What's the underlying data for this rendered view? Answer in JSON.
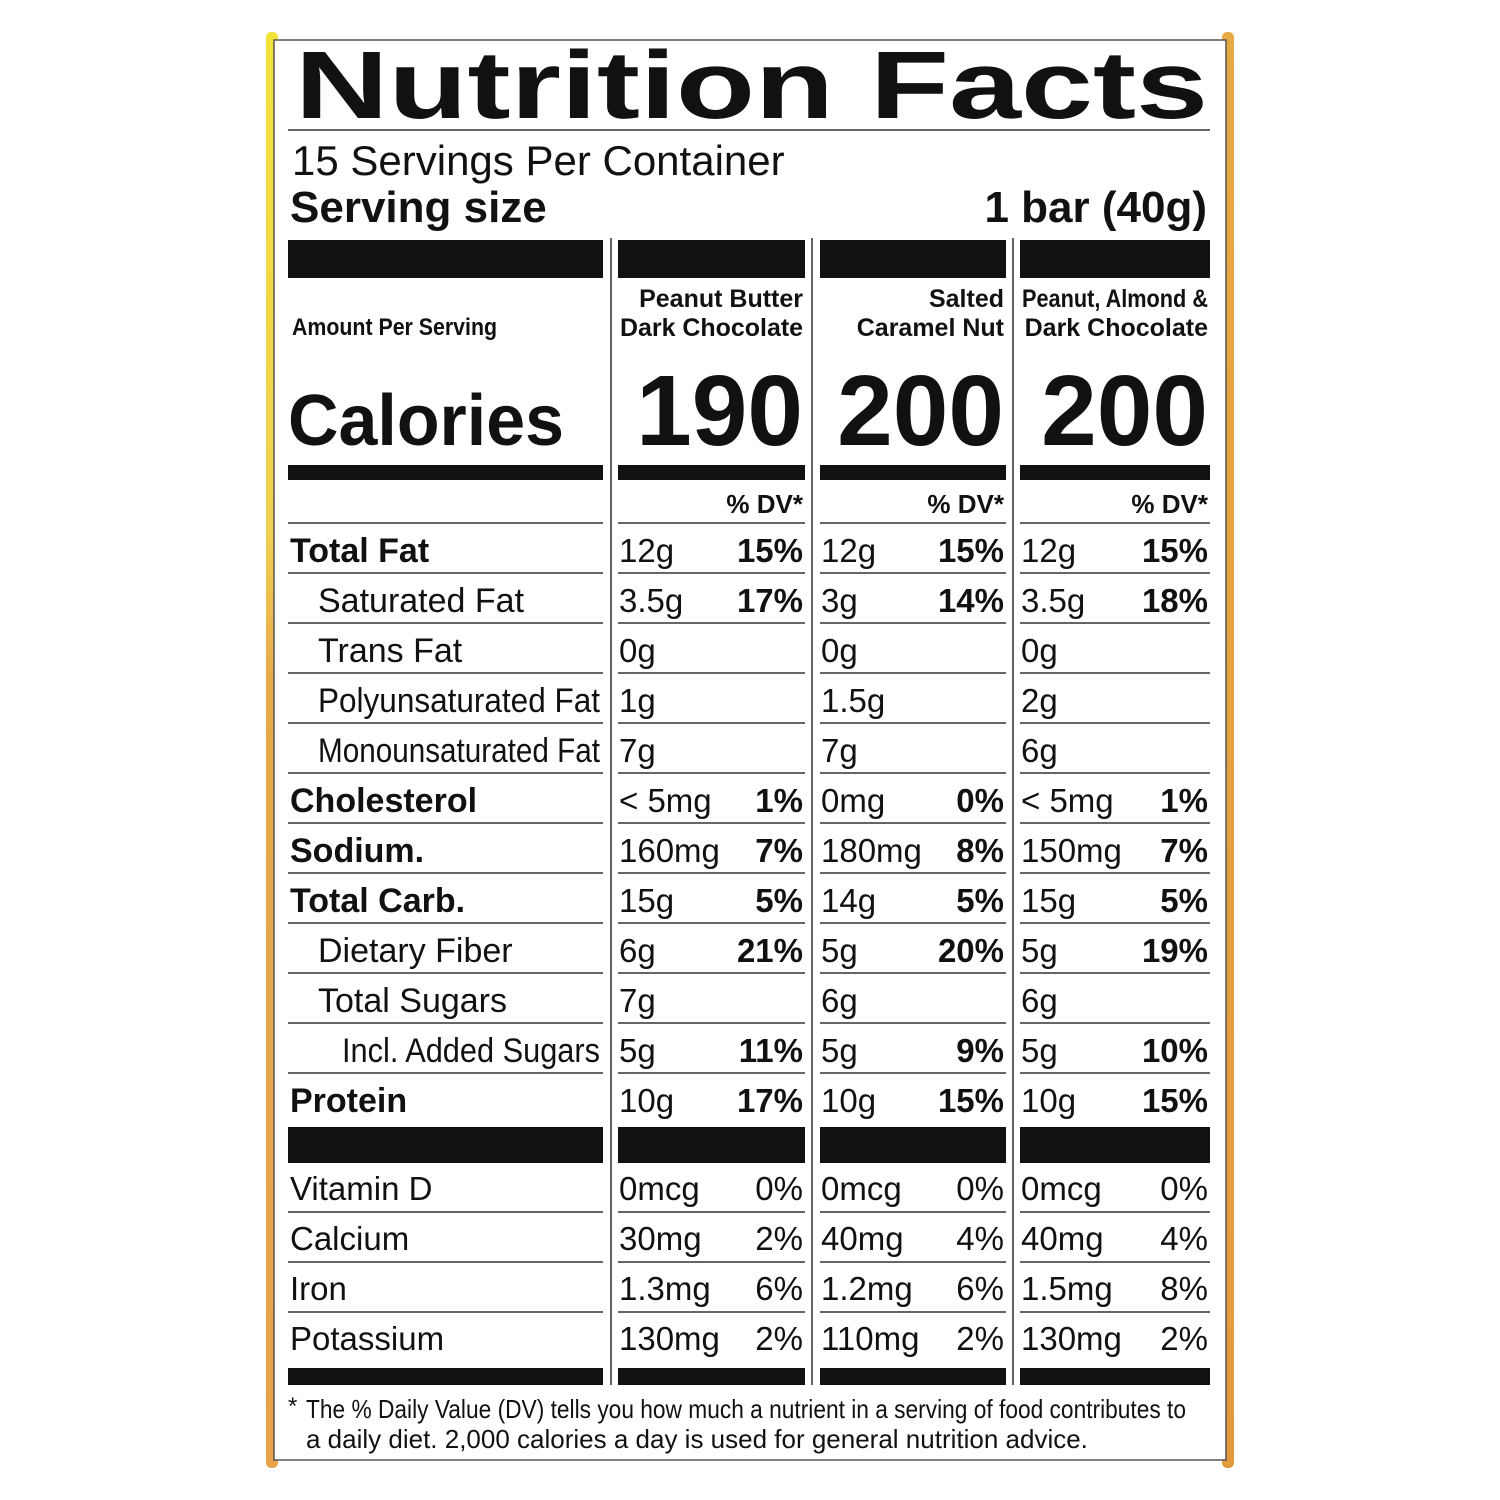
{
  "title": "Nutrition Facts",
  "servings_per_container": "15 Servings Per Container",
  "serving_size": {
    "label": "Serving size",
    "value": "1 bar (40g)"
  },
  "amount_per_serving": "Amount Per Serving",
  "calories_label": "Calories",
  "dv_header": "% DV*",
  "products": [
    {
      "name_lines": [
        "Peanut Butter",
        "Dark Chocolate"
      ],
      "calories": 190
    },
    {
      "name_lines": [
        "Salted",
        "Caramel Nut"
      ],
      "calories": 200
    },
    {
      "name_lines": [
        "Peanut, Almond &",
        "Dark Chocolate"
      ],
      "calories": 200
    }
  ],
  "nutrients": [
    {
      "name": "Total Fat",
      "bold": true,
      "indent": 0,
      "values": [
        [
          "12g",
          "15%"
        ],
        [
          "12g",
          "15%"
        ],
        [
          "12g",
          "15%"
        ]
      ]
    },
    {
      "name": "Saturated Fat",
      "bold": false,
      "indent": 1,
      "values": [
        [
          "3.5g",
          "17%"
        ],
        [
          "3g",
          "14%"
        ],
        [
          "3.5g",
          "18%"
        ]
      ]
    },
    {
      "name": "Trans Fat",
      "bold": false,
      "indent": 1,
      "values": [
        [
          "0g",
          null
        ],
        [
          "0g",
          null
        ],
        [
          "0g",
          null
        ]
      ]
    },
    {
      "name": "Polyunsaturated Fat",
      "bold": false,
      "indent": 1,
      "values": [
        [
          "1g",
          null
        ],
        [
          "1.5g",
          null
        ],
        [
          "2g",
          null
        ]
      ]
    },
    {
      "name": "Monounsaturated Fat",
      "bold": false,
      "indent": 1,
      "values": [
        [
          "7g",
          null
        ],
        [
          "7g",
          null
        ],
        [
          "6g",
          null
        ]
      ]
    },
    {
      "name": "Cholesterol",
      "bold": true,
      "indent": 0,
      "values": [
        [
          "< 5mg",
          "1%"
        ],
        [
          "0mg",
          "0%"
        ],
        [
          "< 5mg",
          "1%"
        ]
      ]
    },
    {
      "name": "Sodium.",
      "bold": true,
      "indent": 0,
      "values": [
        [
          "160mg",
          "7%"
        ],
        [
          "180mg",
          "8%"
        ],
        [
          "150mg",
          "7%"
        ]
      ]
    },
    {
      "name": "Total Carb.",
      "bold": true,
      "indent": 0,
      "values": [
        [
          "15g",
          "5%"
        ],
        [
          "14g",
          "5%"
        ],
        [
          "15g",
          "5%"
        ]
      ]
    },
    {
      "name": "Dietary Fiber",
      "bold": false,
      "indent": 1,
      "values": [
        [
          "6g",
          "21%"
        ],
        [
          "5g",
          "20%"
        ],
        [
          "5g",
          "19%"
        ]
      ]
    },
    {
      "name": "Total Sugars",
      "bold": false,
      "indent": 1,
      "values": [
        [
          "7g",
          null
        ],
        [
          "6g",
          null
        ],
        [
          "6g",
          null
        ]
      ]
    },
    {
      "name": "Incl. Added Sugars",
      "bold": false,
      "indent": 2,
      "values": [
        [
          "5g",
          "11%"
        ],
        [
          "5g",
          "9%"
        ],
        [
          "5g",
          "10%"
        ]
      ]
    },
    {
      "name": "Protein",
      "bold": true,
      "indent": 0,
      "values": [
        [
          "10g",
          "17%"
        ],
        [
          "10g",
          "15%"
        ],
        [
          "10g",
          "15%"
        ]
      ]
    }
  ],
  "vitamins": [
    {
      "name": "Vitamin D",
      "values": [
        [
          "0mcg",
          "0%"
        ],
        [
          "0mcg",
          "0%"
        ],
        [
          "0mcg",
          "0%"
        ]
      ]
    },
    {
      "name": "Calcium",
      "values": [
        [
          "30mg",
          "2%"
        ],
        [
          "40mg",
          "4%"
        ],
        [
          "40mg",
          "4%"
        ]
      ]
    },
    {
      "name": "Iron",
      "values": [
        [
          "1.3mg",
          "6%"
        ],
        [
          "1.2mg",
          "6%"
        ],
        [
          "1.5mg",
          "8%"
        ]
      ]
    },
    {
      "name": "Potassium",
      "values": [
        [
          "130mg",
          "2%"
        ],
        [
          "110mg",
          "2%"
        ],
        [
          "130mg",
          "2%"
        ]
      ]
    }
  ],
  "footnote": {
    "marker": "*",
    "lines": [
      "The % Daily Value (DV) tells you how much a nutrient in a serving of food contributes to",
      "a daily diet. 2,000 calories a day is used for general nutrition advice."
    ]
  }
}
